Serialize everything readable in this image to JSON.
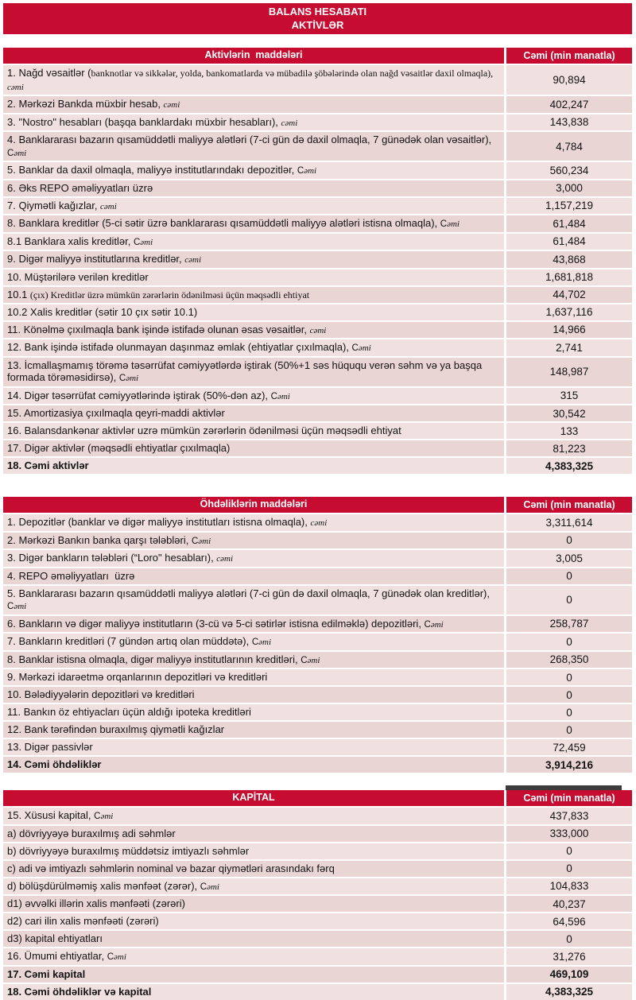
{
  "title": {
    "line1": "BALANS HESABATI",
    "line2": "AKTİVLƏR"
  },
  "colors": {
    "header_red": "#c60c30",
    "row_light": "#f1e0e0",
    "row_dark": "#ead5d5",
    "dark_strip": "#3c3c3c",
    "header_text": "#ffffff"
  },
  "tables": [
    {
      "id": "assets",
      "header": {
        "label": "Aktivlərin  maddələri",
        "amount": "Cəmi (min manatla)"
      },
      "strip": false,
      "rows": [
        {
          "label": "1. Nağd vəsaitlər (",
          "serif": "banknotlar və sikkələr, yolda, bankomatlarda və mübadilə şöbələrində olan nağd vəsaitlər daxil olmaqla), ",
          "suffix": "cəmi",
          "value": "90,894"
        },
        {
          "label": "2. Mərkəzi Bankda müxbir hesab, ",
          "suffix": "cəmi",
          "value": "402,247"
        },
        {
          "label": "3. \"Nostro\" hesabları (başqa banklardakı müxbir hesabları), ",
          "suffix": "cəmi",
          "value": "143,838"
        },
        {
          "label": "4. Banklararası bazarın qısamüddətli maliyyə alətləri (7-ci gün də daxil olmaqla, 7 günədək olan vəsaitlər), ",
          "suffix": "Cəmi",
          "brk": true,
          "tall": true,
          "value": "4,784"
        },
        {
          "label": "5. Banklar da daxil olmaqla, maliyyə institutlarındakı depozitlər, ",
          "suffix": "Cəmi",
          "value": "560,234"
        },
        {
          "label": "6. Əks REPO əməliyyatları üzrə",
          "value": "3,000"
        },
        {
          "label": "7. Qiymətli kağızlar, ",
          "suffix": "cəmi",
          "value": "1,157,219"
        },
        {
          "label": "8. Banklara kreditlər (5-ci sətir üzrə banklararası qısamüddətli maliyyə alətləri istisna olmaqla), ",
          "suffix": "Cəmi",
          "value": "61,484"
        },
        {
          "label": "8.1 Banklara xalis kreditlər, ",
          "suffix": "Cəmi",
          "value": "61,484"
        },
        {
          "label": "9. Digər maliyyə institutlarına kreditlər, ",
          "suffix": "cəmi",
          "value": "43,868"
        },
        {
          "label": "10. Müştərilərə verilən kreditlər",
          "value": "1,681,818"
        },
        {
          "label": "10.1 ",
          "serif": "(çıx) Kreditlər üzrə mümkün zərərlərin ödənilməsi üçün məqsədli ehtiyat",
          "value": "44,702"
        },
        {
          "label": "10.2 Xalis kreditlər (sətir 10 çıx sətir 10.1)",
          "value": "1,637,116"
        },
        {
          "label": "11. Könəlmə çıxılmaqla bank işində istifadə olunan əsas vəsaitlər, ",
          "suffix": "cəmi",
          "value": "14,966"
        },
        {
          "label": "12. Bank işində istifadə olunmayan daşınmaz əmlak (ehtiyatlar çıxılmaqla), ",
          "suffix": "Cəmi",
          "value": "2,741"
        },
        {
          "label": "13. İcmallaşmamış törəmə təsərrüfat cəmiyyətlərdə iştirak (50%+1 səs hüququ verən səhm və ya başqa formada törəməsidirsə), ",
          "suffix": "Cəmi",
          "tall": true,
          "value": "148,987"
        },
        {
          "label": "14. Digər təsərrüfat cəmiyyətlərində iştirak (50%-dən az), ",
          "suffix": "Cəmi",
          "value": "315"
        },
        {
          "label": "15. Amortizasiya çıxılmaqla qeyri-maddi aktivlər",
          "value": "30,542"
        },
        {
          "label": "16. Balansdankənar aktivlər uzrə mümkün zərərlərin ödənilməsi üçün məqsədli ehtiyat",
          "value": "133"
        },
        {
          "label": "17. Digər aktivlər (məqsədli ehtiyatlar çıxılmaqla)",
          "value": "81,223"
        },
        {
          "label": "18. Cəmi aktivlər",
          "bold": true,
          "value": "4,383,325"
        }
      ]
    },
    {
      "id": "liabilities",
      "header": {
        "label": "Öhdəliklərin maddələri",
        "amount": "Cəmi (min manatla)"
      },
      "strip": false,
      "rows": [
        {
          "label": "1. Depozitlər (banklar və digər maliyyə institutları istisna olmaqla), ",
          "suffix": "cəmi",
          "value": "3,311,614"
        },
        {
          "label": "2. Mərkəzi Bankın banka qarşı tələbləri, ",
          "suffix": "Cəmi",
          "value": "0"
        },
        {
          "label": "3. Digər bankların tələbləri (“Loro\" hesabları), ",
          "suffix": "cəmi",
          "value": "3,005"
        },
        {
          "label": "4. REPO əməliyyatları  üzrə",
          "value": "0"
        },
        {
          "label": "5. Banklararası bazarın qısamüddətli maliyyə alətləri (7-ci gün də daxil olmaqla, 7 günədək olan kreditlər), ",
          "suffix": "Cəmi",
          "brk": true,
          "tall": true,
          "value": "0"
        },
        {
          "label": "6. Bankların və digər maliyyə institutların (3-cü və 5-ci sətirlər istisna edilməklə) depozitləri, ",
          "suffix": "Cəmi",
          "value": "258,787"
        },
        {
          "label": "7. Bankların kreditləri (7 gündən artıq olan müddətə), ",
          "suffix": "Cəmi",
          "value": "0"
        },
        {
          "label": "8. Banklar istisna olmaqla, digər maliyyə institutlarının kreditləri, ",
          "suffix": "Cəmi",
          "value": "268,350"
        },
        {
          "label": "9. Mərkəzi idarəetmə orqanlarının depozitləri və kreditləri",
          "value": "0"
        },
        {
          "label": "10. Bələdiyyələrin depozitləri və kreditləri",
          "value": "0"
        },
        {
          "label": "11. Bankın öz ehtiyacları üçün aldığı ipoteka kreditləri",
          "value": "0"
        },
        {
          "label": "12. Bank tərəfindən buraxılmış qiymətli kağızlar",
          "value": "0"
        },
        {
          "label": "13. Digər passivlər",
          "value": "72,459"
        },
        {
          "label": "14. Cəmi öhdəliklər",
          "bold": true,
          "value": "3,914,216"
        }
      ]
    },
    {
      "id": "capital",
      "header": {
        "label": "KAPİTAL",
        "amount": "Cəmi (min manatla)"
      },
      "strip": true,
      "rows": [
        {
          "label": "15. Xüsusi kapital, ",
          "suffix": "Cəmi",
          "value": "437,833"
        },
        {
          "label": "a) dövriyyəyə buraxılmış adi səhmlər",
          "value": "333,000"
        },
        {
          "label": "b) dövriyyəyə buraxılmış müddətsiz imtiyazlı səhmlər",
          "value": "0"
        },
        {
          "label": "c) adi və imtiyazlı səhmlərin nominal və bazar qiymətləri arasındakı fərq",
          "value": "0"
        },
        {
          "label": "d) bölüşdürülməmiş xalis mənfəət (zərər), ",
          "suffix": "Cəmi",
          "value": "104,833"
        },
        {
          "label": "d1) əvvəlki illərin xalis mənfəəti (zərəri)",
          "value": "40,237"
        },
        {
          "label": "d2) cari ilin xalis mənfəəti (zərəri)",
          "value": "64,596"
        },
        {
          "label": "d3) kapital ehtiyatları",
          "value": "0"
        },
        {
          "label": "16. Ümumi ehtiyatlar, ",
          "suffix": "Cəmi",
          "value": "31,276"
        },
        {
          "label": "17. Cəmi kapital",
          "bold": true,
          "value": "469,109"
        },
        {
          "label": "18. Cəmi öhdəliklər və kapital",
          "bold": true,
          "value": "4,383,325"
        }
      ]
    }
  ]
}
